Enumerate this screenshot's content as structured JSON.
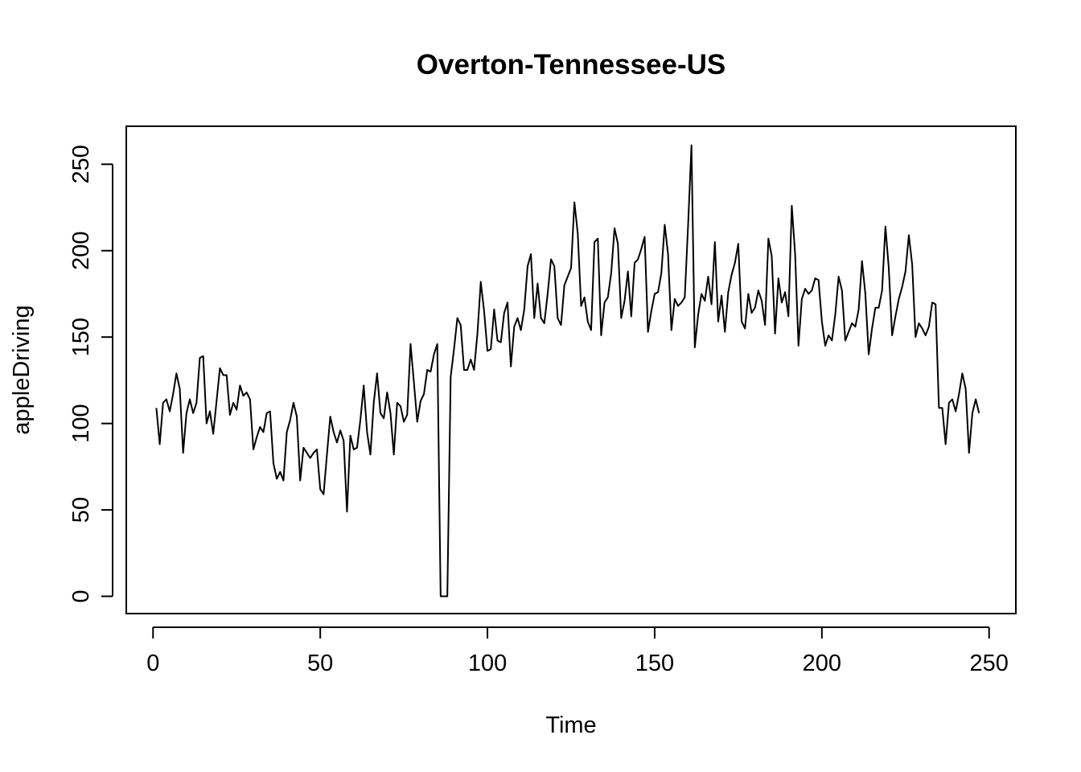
{
  "chart_data": {
    "type": "line",
    "title": "Overton-Tennessee-US",
    "xlabel": "Time",
    "ylabel": "appleDriving",
    "xlim": [
      -8,
      258
    ],
    "ylim": [
      -10,
      272
    ],
    "xticks": [
      0,
      50,
      100,
      150,
      200,
      250
    ],
    "yticks": [
      0,
      50,
      100,
      150,
      200,
      250
    ],
    "grid": false,
    "legend": "none",
    "line_color": "#000000",
    "series": [
      {
        "x_start": 1,
        "values": [
          109,
          88,
          112,
          114,
          107,
          117,
          129,
          120,
          83,
          106,
          114,
          106,
          112,
          138,
          139,
          100,
          107,
          94,
          113,
          132,
          128,
          128,
          105,
          112,
          108,
          122,
          116,
          118,
          114,
          85,
          92,
          98,
          95,
          106,
          107,
          77,
          68,
          72,
          67,
          95,
          102,
          112,
          104,
          67,
          86,
          83,
          80,
          83,
          85,
          62,
          59,
          82,
          104,
          95,
          89,
          96,
          90,
          49,
          93,
          85,
          86,
          102,
          122,
          95,
          82,
          112,
          129,
          106,
          103,
          118,
          106,
          82,
          112,
          110,
          101,
          105,
          146,
          124,
          101,
          113,
          117,
          131,
          130,
          140,
          146,
          0,
          0,
          0,
          127,
          143,
          161,
          157,
          131,
          131,
          137,
          131,
          152,
          182,
          165,
          142,
          143,
          166,
          148,
          147,
          164,
          170,
          133,
          156,
          161,
          154,
          166,
          191,
          198,
          161,
          181,
          161,
          158,
          175,
          195,
          191,
          161,
          157,
          180,
          185,
          190,
          228,
          210,
          168,
          173,
          159,
          154,
          205,
          207,
          151,
          170,
          173,
          187,
          213,
          204,
          161,
          171,
          188,
          162,
          193,
          195,
          201,
          208,
          153,
          165,
          175,
          176,
          187,
          215,
          198,
          154,
          172,
          168,
          170,
          173,
          215,
          261,
          144,
          163,
          175,
          171,
          185,
          169,
          205,
          159,
          174,
          153,
          176,
          186,
          193,
          204,
          159,
          155,
          175,
          164,
          167,
          177,
          171,
          157,
          207,
          197,
          152,
          184,
          170,
          176,
          162,
          226,
          198,
          145,
          172,
          178,
          175,
          177,
          184,
          183,
          159,
          145,
          151,
          148,
          163,
          185,
          177,
          148,
          153,
          158,
          156,
          166,
          194,
          175,
          140,
          155,
          167,
          167,
          177,
          214,
          190,
          151,
          162,
          172,
          179,
          188,
          209,
          192,
          150,
          158,
          155,
          151,
          156,
          170,
          169,
          109,
          109,
          88,
          112,
          114,
          107,
          117,
          129,
          120,
          83,
          106,
          114,
          106
        ]
      }
    ]
  }
}
